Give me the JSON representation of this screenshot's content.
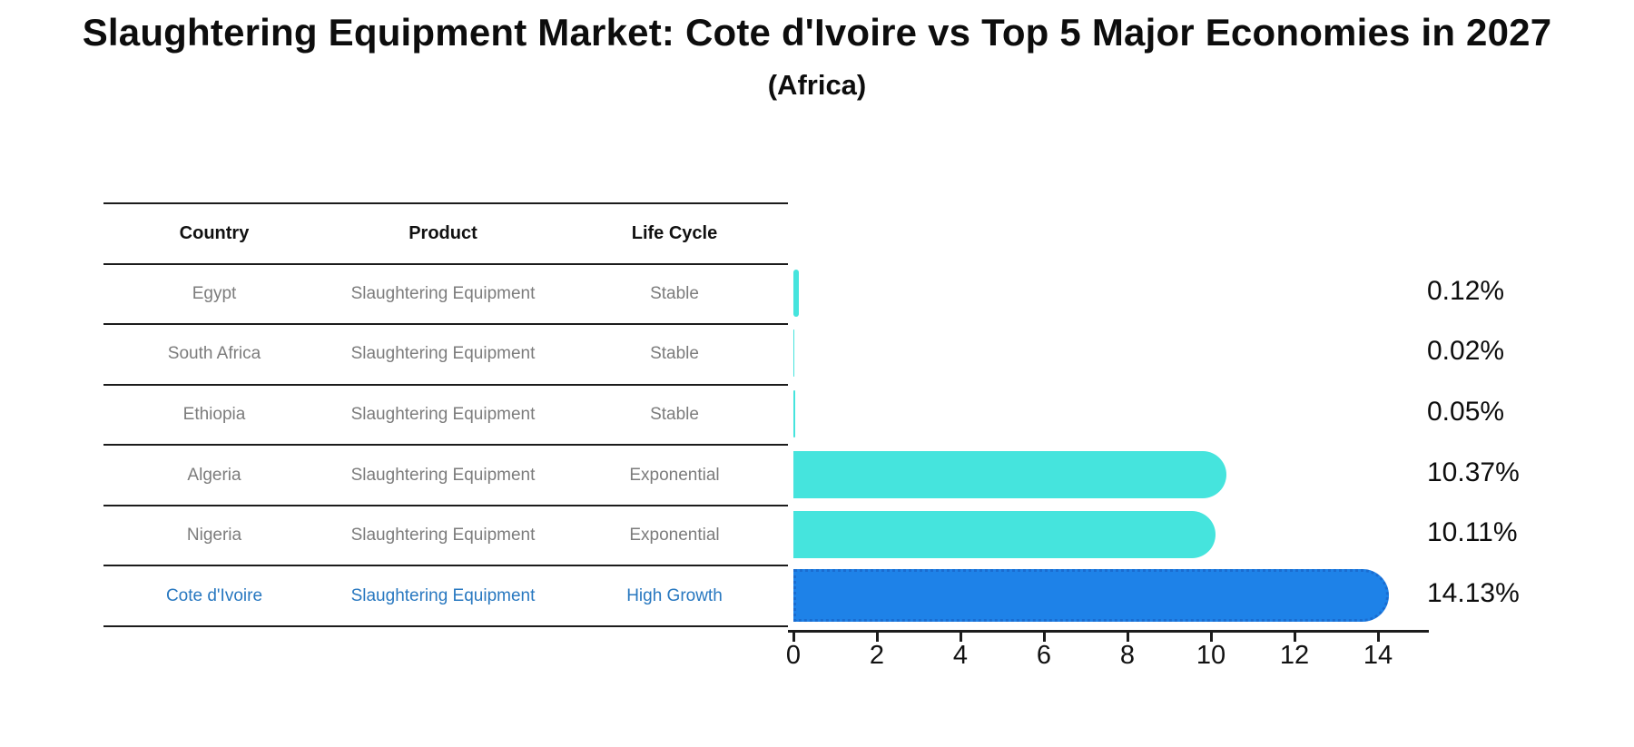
{
  "title": "Slaughtering Equipment Market: Cote d'Ivoire vs Top 5 Major Economies in 2027",
  "subtitle": "(Africa)",
  "table": {
    "headers": {
      "country": "Country",
      "product": "Product",
      "life_cycle": "Life Cycle"
    },
    "rows": [
      {
        "country": "Egypt",
        "product": "Slaughtering Equipment",
        "life_cycle": "Stable"
      },
      {
        "country": "South Africa",
        "product": "Slaughtering Equipment",
        "life_cycle": "Stable"
      },
      {
        "country": "Ethiopia",
        "product": "Slaughtering Equipment",
        "life_cycle": "Stable"
      },
      {
        "country": "Algeria",
        "product": "Slaughtering Equipment",
        "life_cycle": "Exponential"
      },
      {
        "country": "Nigeria",
        "product": "Slaughtering Equipment",
        "life_cycle": "Exponential"
      },
      {
        "country": "Cote d'Ivoire",
        "product": "Slaughtering Equipment",
        "life_cycle": "High Growth"
      }
    ],
    "highlight_row_index": 5
  },
  "chart_data": {
    "type": "bar",
    "orientation": "horizontal",
    "categories": [
      "Egypt",
      "South Africa",
      "Ethiopia",
      "Algeria",
      "Nigeria",
      "Cote d'Ivoire"
    ],
    "values": [
      0.12,
      0.02,
      0.05,
      10.37,
      10.11,
      14.13
    ],
    "value_labels": [
      "0.12%",
      "0.02%",
      "0.05%",
      "10.37%",
      "10.11%",
      "14.13%"
    ],
    "x_ticks": [
      0,
      2,
      4,
      6,
      8,
      10,
      12,
      14
    ],
    "xlim": [
      0,
      15.2
    ],
    "grid": false,
    "legend_position": "none",
    "bar_color_default": "#45e4dd",
    "bar_color_highlight": "#1e82e8",
    "highlight_index": 5
  },
  "colors": {
    "highlight_text": "#2878c0",
    "row_text": "#7c7c7c",
    "header_text": "#111111",
    "axis_and_lines": "#1c1c1c",
    "background": "#ffffff"
  }
}
